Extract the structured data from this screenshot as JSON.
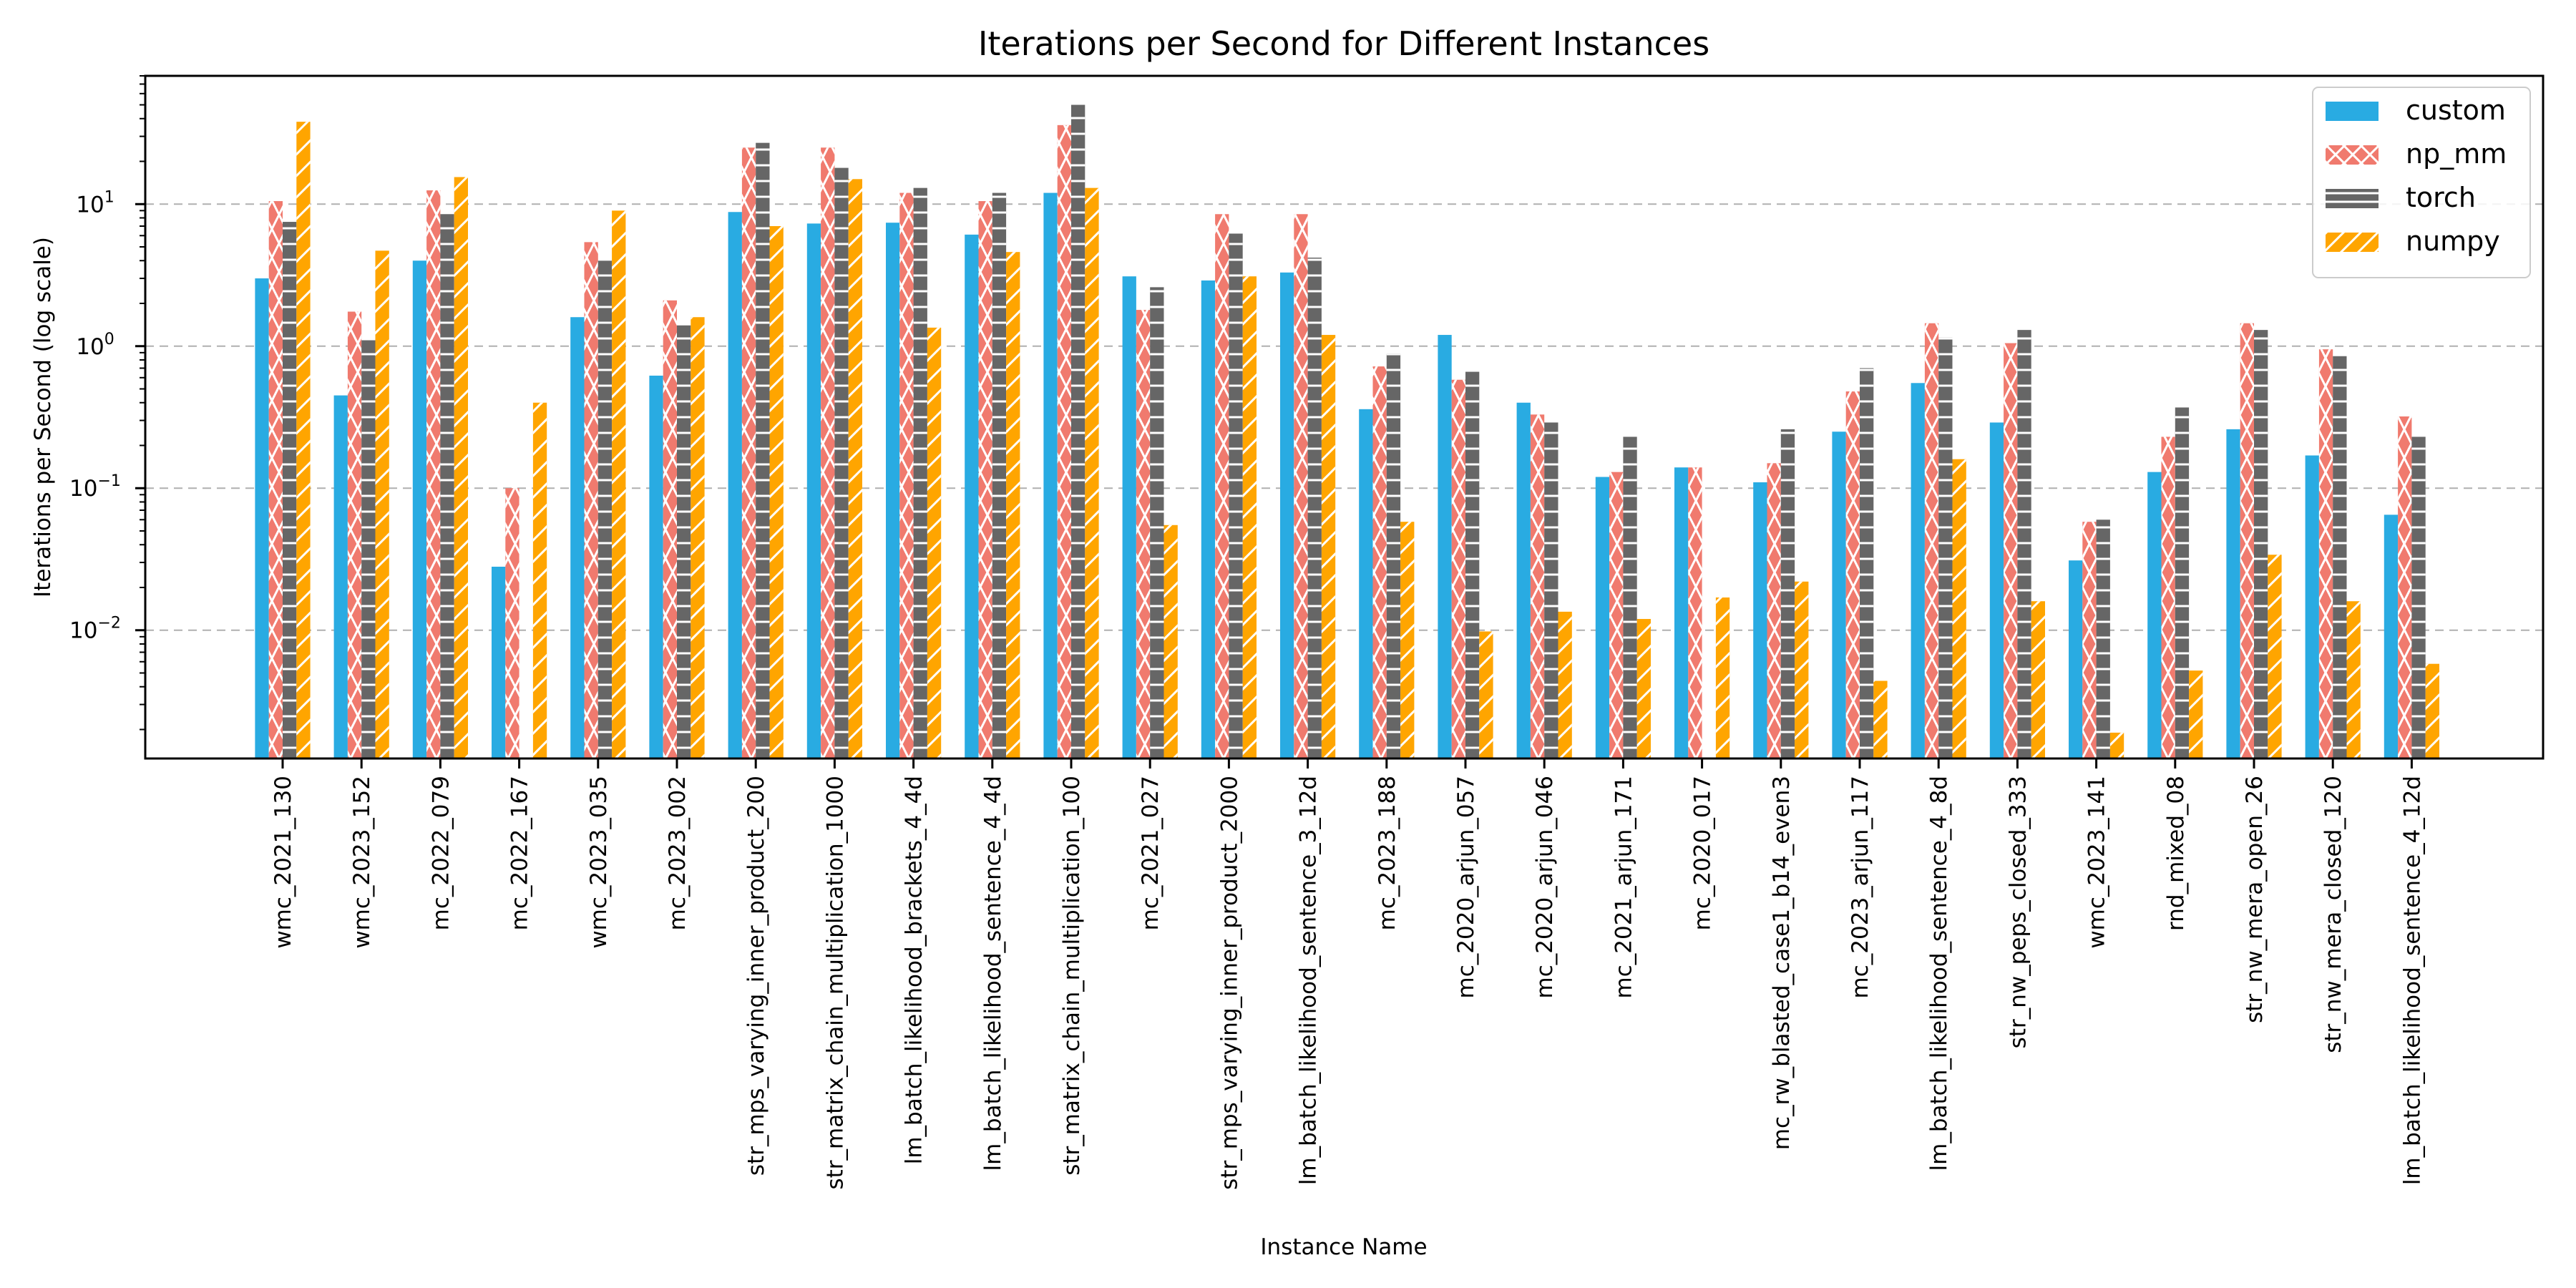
{
  "chart_data": {
    "type": "bar",
    "title": "Iterations per Second for Different Instances",
    "xlabel": "Instance Name",
    "ylabel": "Iterations per Second (log scale)",
    "yscale": "log",
    "ylim": [
      0.00125,
      80
    ],
    "yticks": [
      0.01,
      0.1,
      1,
      10
    ],
    "yticklabels": [
      {
        "base": "10",
        "exp": "−2"
      },
      {
        "base": "10",
        "exp": "−1"
      },
      {
        "base": "10",
        "exp": "0"
      },
      {
        "base": "10",
        "exp": "1"
      }
    ],
    "grid": "y-major-dashed",
    "legend_position": "top-right",
    "categories": [
      "wmc_2021_130",
      "wmc_2023_152",
      "mc_2022_079",
      "mc_2022_167",
      "wmc_2023_035",
      "mc_2023_002",
      "str_mps_varying_inner_product_200",
      "str_matrix_chain_multiplication_1000",
      "lm_batch_likelihood_brackets_4_4d",
      "lm_batch_likelihood_sentence_4_4d",
      "str_matrix_chain_multiplication_100",
      "mc_2021_027",
      "str_mps_varying_inner_product_2000",
      "lm_batch_likelihood_sentence_3_12d",
      "mc_2023_188",
      "mc_2020_arjun_057",
      "mc_2020_arjun_046",
      "mc_2021_arjun_171",
      "mc_2020_017",
      "mc_rw_blasted_case1_b14_even3",
      "mc_2023_arjun_117",
      "lm_batch_likelihood_sentence_4_8d",
      "str_nw_peps_closed_333",
      "wmc_2023_141",
      "rnd_mixed_08",
      "str_nw_mera_open_26",
      "str_nw_mera_closed_120",
      "lm_batch_likelihood_sentence_4_12d"
    ],
    "series": [
      {
        "name": "custom",
        "color": "#29abe2",
        "pattern": "solid",
        "values": [
          3.0,
          0.45,
          4.0,
          0.028,
          1.6,
          0.62,
          8.8,
          7.3,
          7.4,
          6.1,
          12.0,
          3.1,
          2.9,
          3.3,
          0.36,
          1.2,
          0.4,
          0.12,
          0.14,
          0.11,
          0.25,
          0.55,
          0.29,
          0.031,
          0.13,
          0.26,
          0.17,
          0.065
        ]
      },
      {
        "name": "np_mm",
        "color": "#f07a6e",
        "pattern": "cross",
        "values": [
          10.5,
          1.75,
          12.5,
          0.1,
          5.4,
          2.1,
          25.0,
          25.0,
          12.0,
          10.5,
          36.0,
          1.8,
          8.5,
          8.5,
          0.72,
          0.58,
          0.33,
          0.13,
          0.14,
          0.15,
          0.48,
          1.45,
          1.05,
          0.058,
          0.23,
          1.45,
          0.95,
          0.32
        ]
      },
      {
        "name": "torch",
        "color": "#666666",
        "pattern": "horizontal",
        "values": [
          7.5,
          1.1,
          8.5,
          0.0012,
          4.0,
          1.4,
          27.0,
          18.0,
          13.0,
          12.0,
          50.0,
          2.6,
          6.2,
          4.2,
          0.88,
          0.66,
          0.29,
          0.23,
          0.0012,
          0.26,
          0.7,
          1.15,
          1.3,
          0.06,
          0.37,
          1.3,
          0.85,
          0.23
        ]
      },
      {
        "name": "numpy",
        "color": "#ffa500",
        "pattern": "diagonal",
        "values": [
          38.0,
          4.7,
          15.5,
          0.4,
          9.0,
          1.6,
          7.0,
          15.0,
          1.35,
          4.6,
          13.0,
          0.055,
          3.1,
          1.2,
          0.058,
          0.0098,
          0.0135,
          0.012,
          0.017,
          0.022,
          0.0044,
          0.16,
          0.016,
          0.0019,
          0.0052,
          0.034,
          0.016,
          0.0058
        ]
      }
    ]
  }
}
